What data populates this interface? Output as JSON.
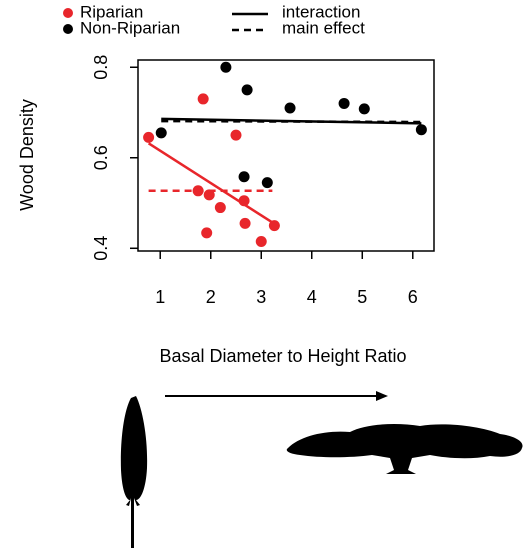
{
  "chart_data": {
    "type": "scatter",
    "x_label": "Basal Diameter to Height Ratio",
    "y_label": "Wood Density",
    "xlim": [
      0.56,
      6.42
    ],
    "ylim": [
      0.394,
      0.816
    ],
    "xticks": [
      1,
      2,
      3,
      4,
      5,
      6
    ],
    "yticks": [
      0.4,
      0.6,
      0.8
    ],
    "series": [
      {
        "name": "Riparian",
        "color": "#e8262b",
        "x": [
          0.77,
          1.85,
          1.75,
          1.97,
          2.19,
          1.92,
          2.5,
          2.66,
          2.68,
          3.0,
          3.26
        ],
        "values": [
          0.645,
          0.73,
          0.527,
          0.518,
          0.49,
          0.434,
          0.65,
          0.505,
          0.455,
          0.415,
          0.45
        ]
      },
      {
        "name": "Non-Riparian",
        "color": "#000000",
        "x": [
          1.02,
          2.3,
          2.72,
          3.57,
          4.64,
          5.04,
          6.17,
          2.66,
          3.12
        ],
        "values": [
          0.655,
          0.8,
          0.75,
          0.71,
          0.72,
          0.708,
          0.662,
          0.558,
          0.545
        ]
      }
    ],
    "fits": [
      {
        "name": "interaction",
        "style": "solid",
        "lines": [
          {
            "color": "#e8262b",
            "x": [
              0.77,
              3.22
            ],
            "values": [
              0.632,
              0.457
            ]
          },
          {
            "color": "#000000",
            "x": [
              1.02,
              6.17
            ],
            "values": [
              0.686,
              0.676
            ]
          }
        ]
      },
      {
        "name": "main effect",
        "style": "dashed",
        "lines": [
          {
            "color": "#e8262b",
            "x": [
              0.77,
              3.22
            ],
            "values": [
              0.527,
              0.527
            ]
          },
          {
            "color": "#000000",
            "x": [
              1.02,
              6.17
            ],
            "values": [
              0.681,
              0.679
            ]
          }
        ]
      }
    ]
  }
}
